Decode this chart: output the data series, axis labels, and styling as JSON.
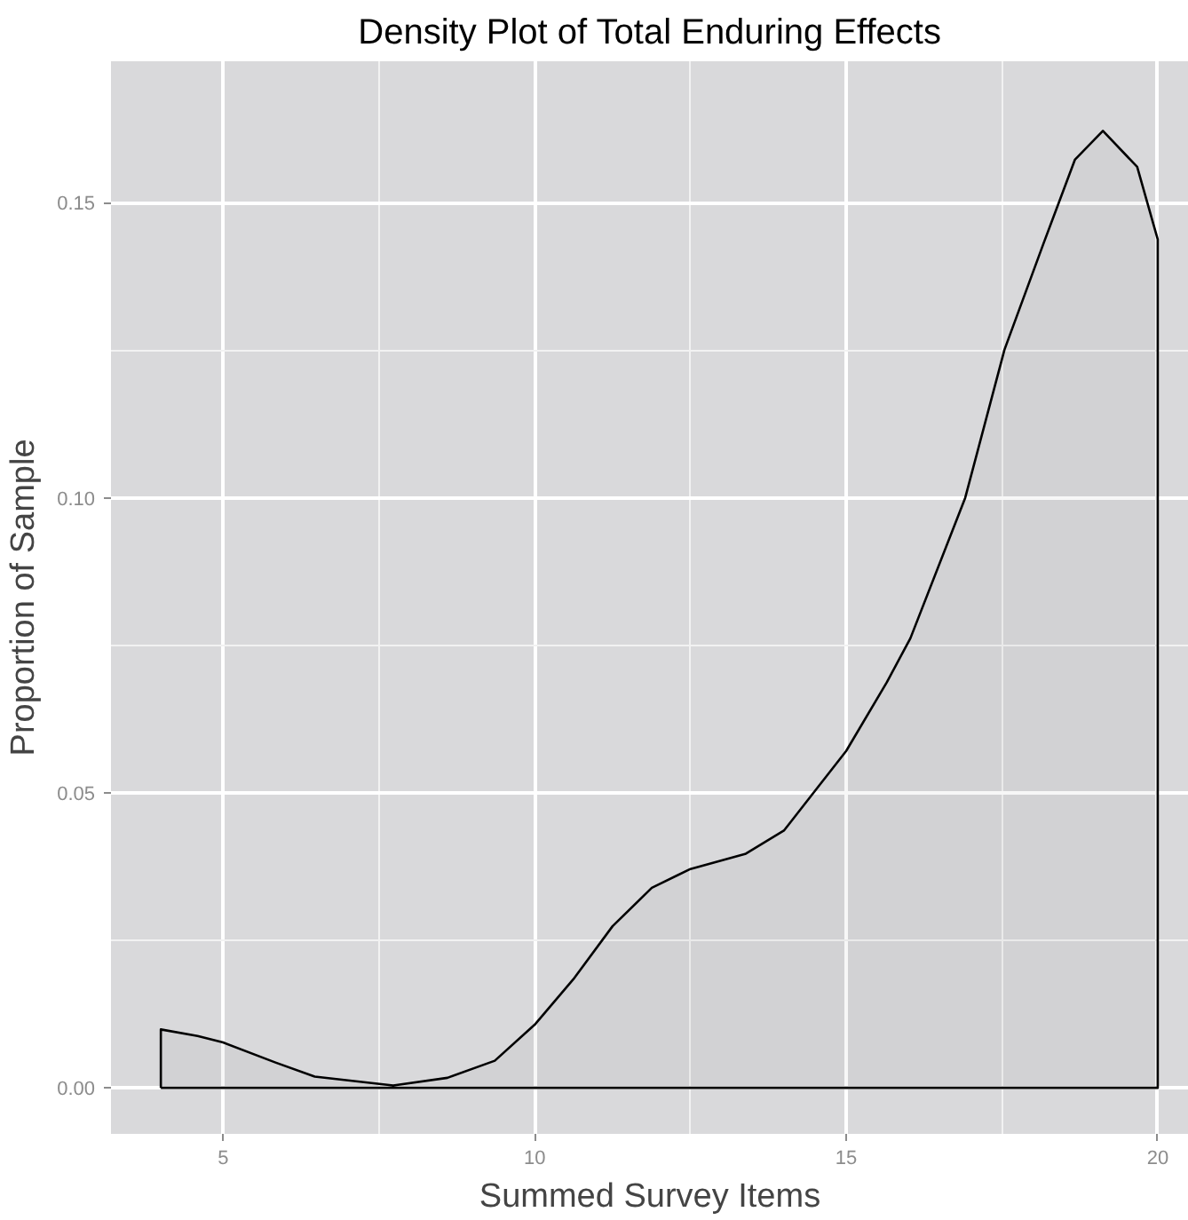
{
  "chart_data": {
    "type": "area",
    "title": "Density Plot of Total Enduring Effects",
    "xlabel": "Summed Survey Items",
    "ylabel": "Proportion of Sample",
    "x": [
      4,
      4.59,
      5,
      5.84,
      6.47,
      7.73,
      8.6,
      9.36,
      10,
      10.62,
      11.25,
      11.88,
      12.5,
      13.39,
      14,
      15,
      15.65,
      16.03,
      16.91,
      17.54,
      18.17,
      18.67,
      19.12,
      19.67,
      20
    ],
    "series": [
      {
        "color": "#000000",
        "values": [
          0.0099,
          0.0088,
          0.0077,
          0.0043,
          0.0019,
          0.0004,
          0.0017,
          0.0046,
          0.0107,
          0.0184,
          0.0274,
          0.0339,
          0.0371,
          0.0397,
          0.0436,
          0.0571,
          0.0687,
          0.0762,
          0.1,
          0.1251,
          0.1432,
          0.1573,
          0.1622,
          0.1561,
          0.1438
        ]
      }
    ],
    "xlim": [
      3.2,
      20.5
    ],
    "ylim": [
      -0.0078,
      0.174
    ],
    "xticks": [
      5,
      10,
      15,
      20
    ],
    "yticks": [
      {
        "value": 0,
        "label": "0.00"
      },
      0.05,
      {
        "value": 0.1,
        "label": "0.10"
      },
      0.15
    ],
    "grid": true
  }
}
